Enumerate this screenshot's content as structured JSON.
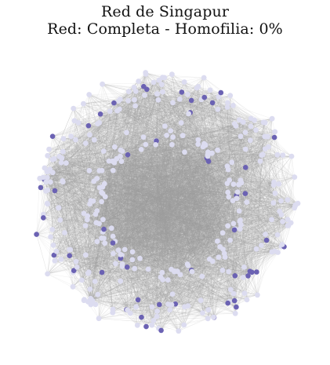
{
  "figure": {
    "title_line1": "Red de Singapur",
    "title_line2": "Red: Completa - Homofilia: 0%"
  },
  "network": {
    "colors": {
      "edge": "#9e9e9e",
      "node_light": "#dcdcf0",
      "node_dark": "#6b62b3",
      "background": "#ffffff"
    }
  }
}
